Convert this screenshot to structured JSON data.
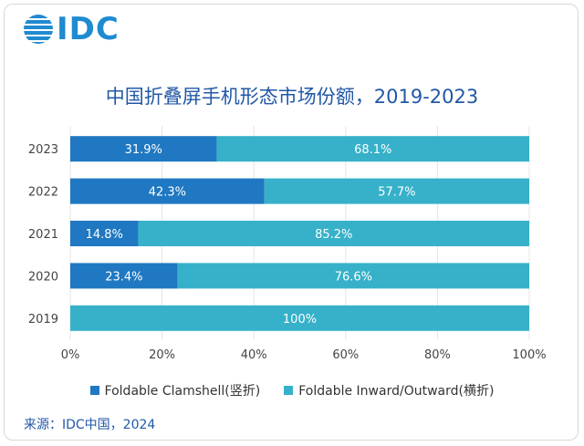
{
  "logo": {
    "brand_text": "IDC"
  },
  "chart_data": {
    "type": "bar",
    "orientation": "horizontal",
    "stacked": true,
    "title": "中国折叠屏手机形态市场份额，2019-2023",
    "categories": [
      "2023",
      "2022",
      "2021",
      "2020",
      "2019"
    ],
    "series": [
      {
        "name": "Foldable Clamshell(竖折)",
        "color": "#1f78c1",
        "values": [
          31.9,
          42.3,
          14.8,
          23.4,
          0
        ],
        "labels": [
          "31.9%",
          "42.3%",
          "14.8%",
          "23.4%",
          ""
        ]
      },
      {
        "name": "Foldable Inward/Outward(横折)",
        "color": "#36b1c9",
        "values": [
          68.1,
          57.7,
          85.2,
          76.6,
          100
        ],
        "labels": [
          "68.1%",
          "57.7%",
          "85.2%",
          "76.6%",
          "100%"
        ]
      }
    ],
    "xlim": [
      0,
      100
    ],
    "xticks": [
      "0%",
      "20%",
      "40%",
      "60%",
      "80%",
      "100%"
    ],
    "xlabel": "",
    "ylabel": "",
    "legend_position": "bottom"
  },
  "source": "来源：IDC中国，2024"
}
